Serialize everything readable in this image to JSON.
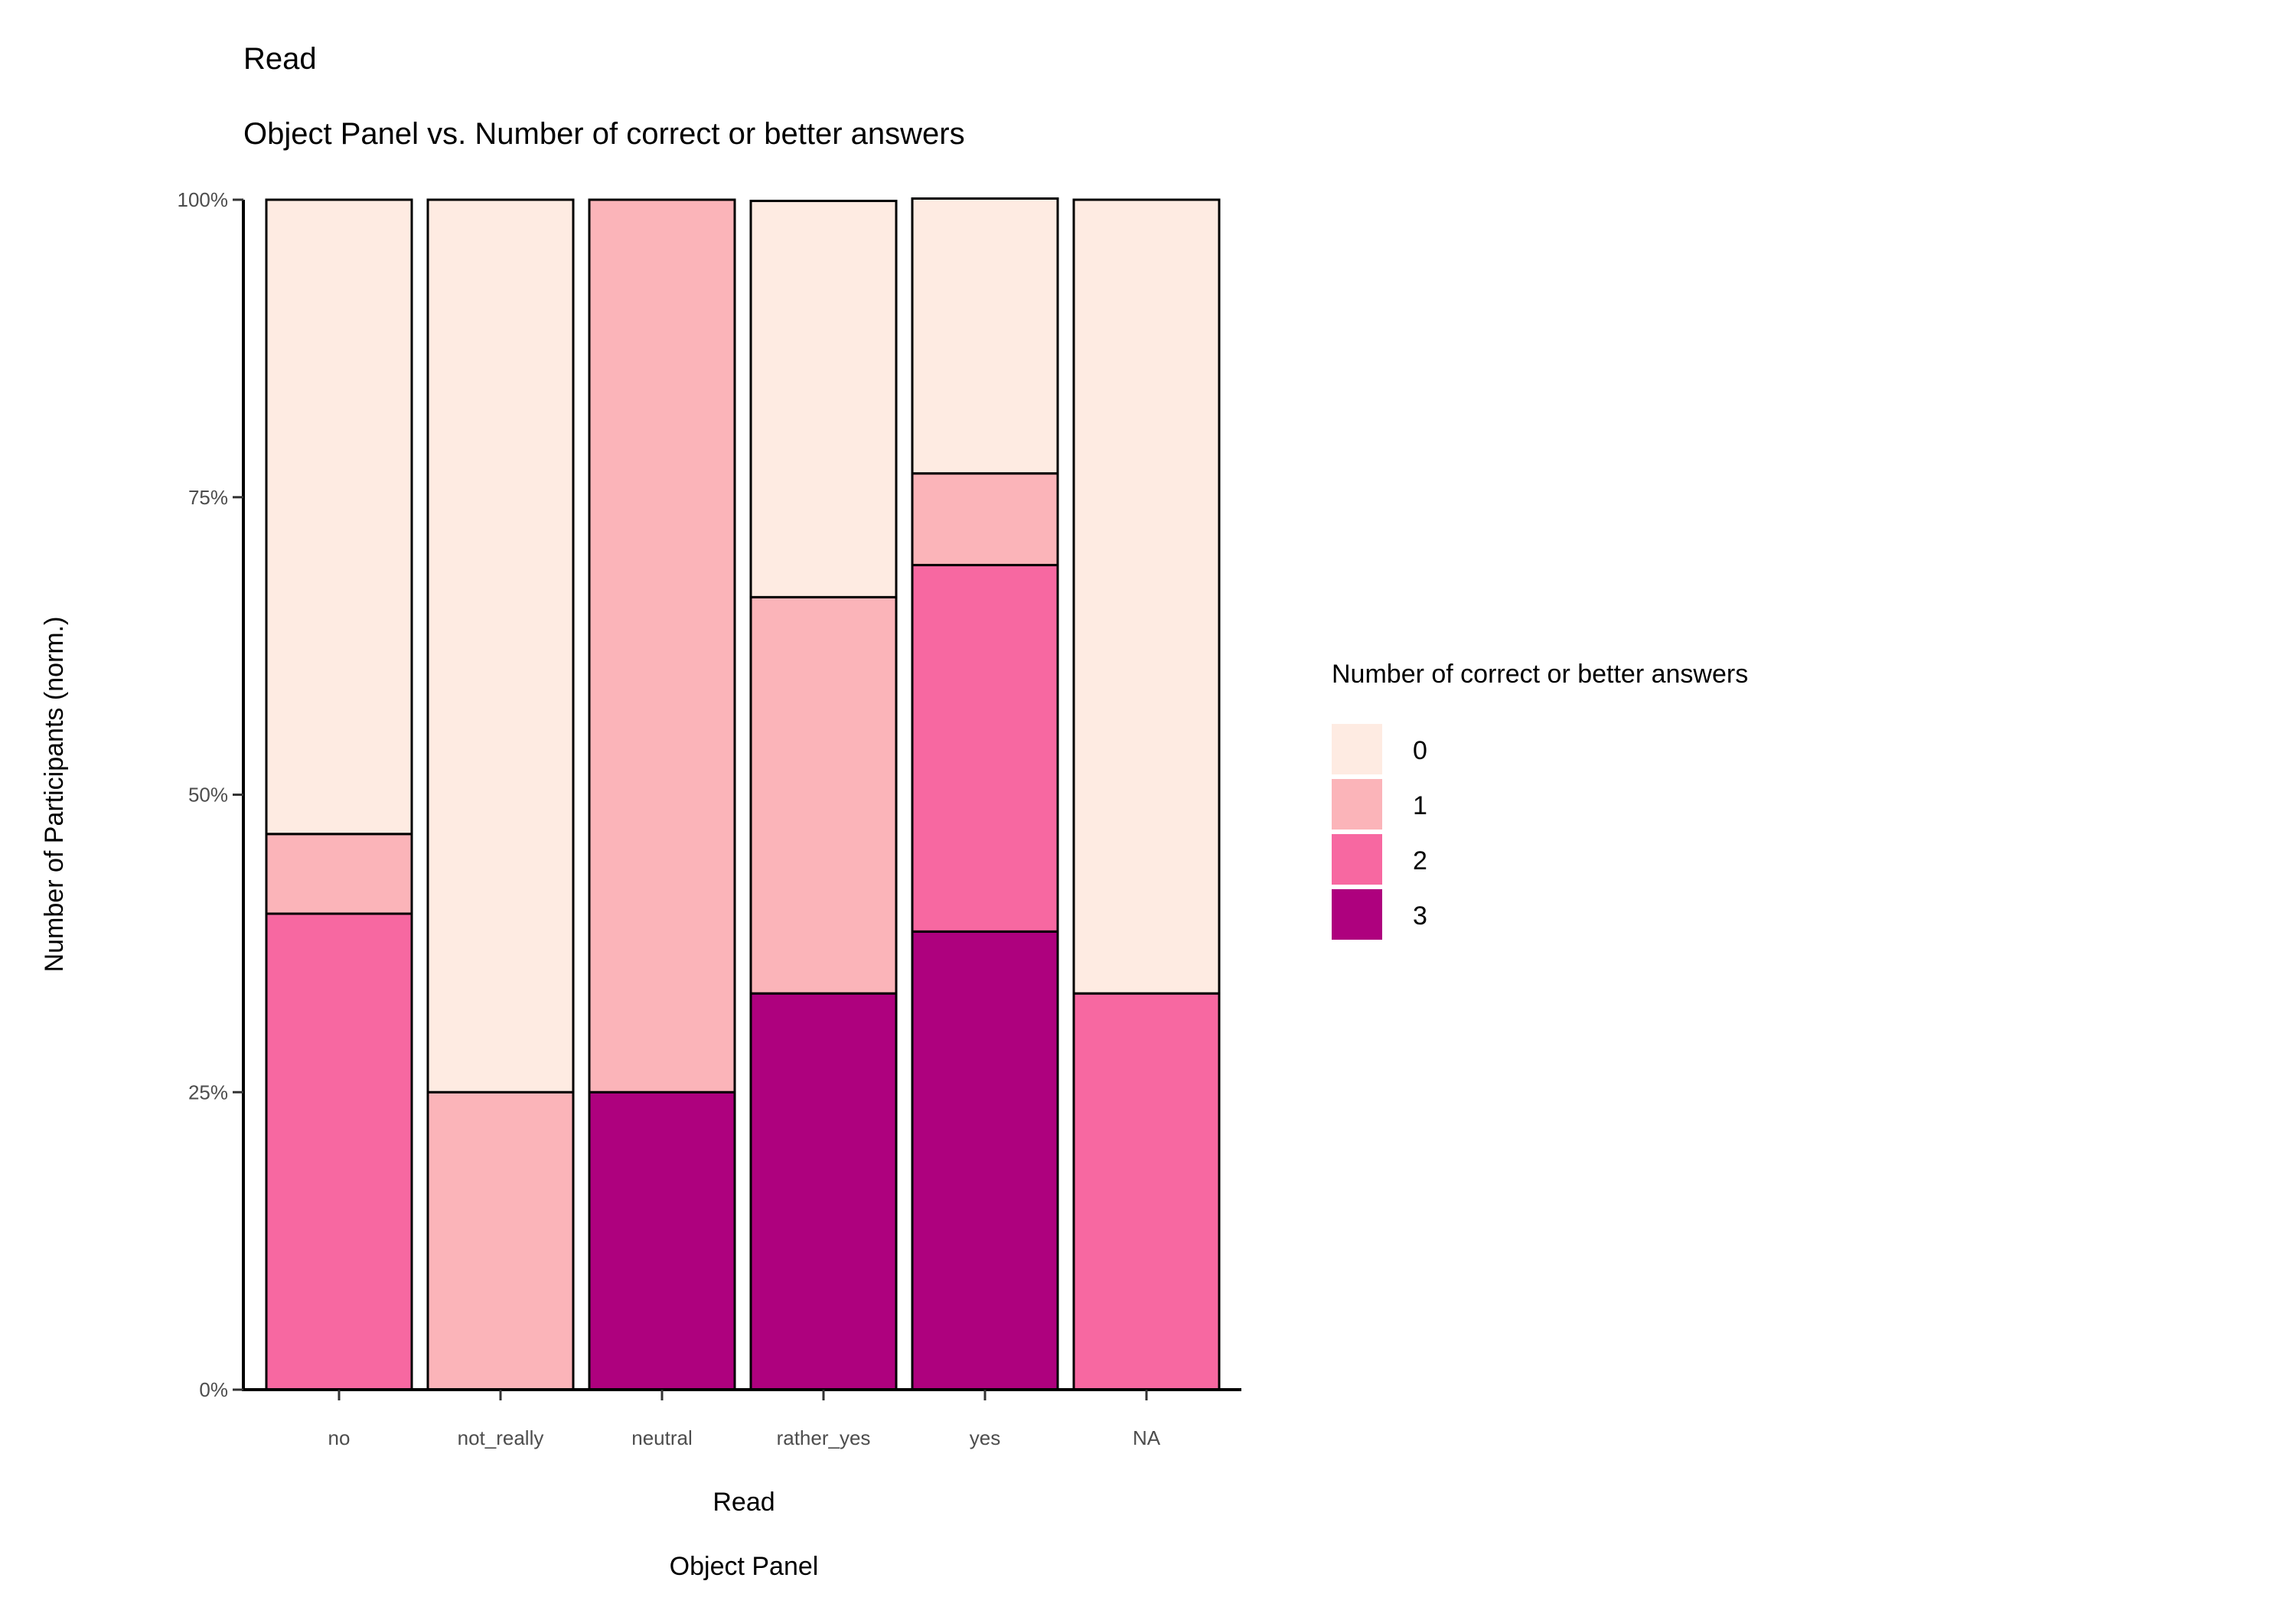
{
  "chart_data": {
    "type": "bar",
    "stacked": true,
    "normalized": true,
    "title": "Read",
    "subtitle": "Object Panel vs. Number of correct or better answers",
    "xlabel": "Read",
    "xlabel_line2": "Object Panel",
    "ylabel": "Number of Participants (norm.)",
    "ylim": [
      0,
      1
    ],
    "y_ticks": [
      {
        "value": 0,
        "label": "0%"
      },
      {
        "value": 0.25,
        "label": "25%"
      },
      {
        "value": 0.5,
        "label": "50%"
      },
      {
        "value": 0.75,
        "label": "75%"
      },
      {
        "value": 1,
        "label": "100%"
      }
    ],
    "categories": [
      "no",
      "not_really",
      "neutral",
      "rather_yes",
      "yes",
      "NA"
    ],
    "series": [
      {
        "name": "0",
        "color": "#FEEBE2",
        "values": [
          0.533,
          0.75,
          0.0,
          0.333,
          0.231,
          0.667
        ]
      },
      {
        "name": "1",
        "color": "#FBB4B9",
        "values": [
          0.067,
          0.25,
          0.75,
          0.333,
          0.077,
          0.0
        ]
      },
      {
        "name": "2",
        "color": "#F768A1",
        "values": [
          0.4,
          0.0,
          0.0,
          0.0,
          0.308,
          0.333
        ]
      },
      {
        "name": "3",
        "color": "#AE017E",
        "values": [
          0.0,
          0.0,
          0.25,
          0.333,
          0.385,
          0.0
        ]
      }
    ],
    "legend": {
      "title": "Number of correct or better answers",
      "placement": "right"
    },
    "grid": false
  }
}
